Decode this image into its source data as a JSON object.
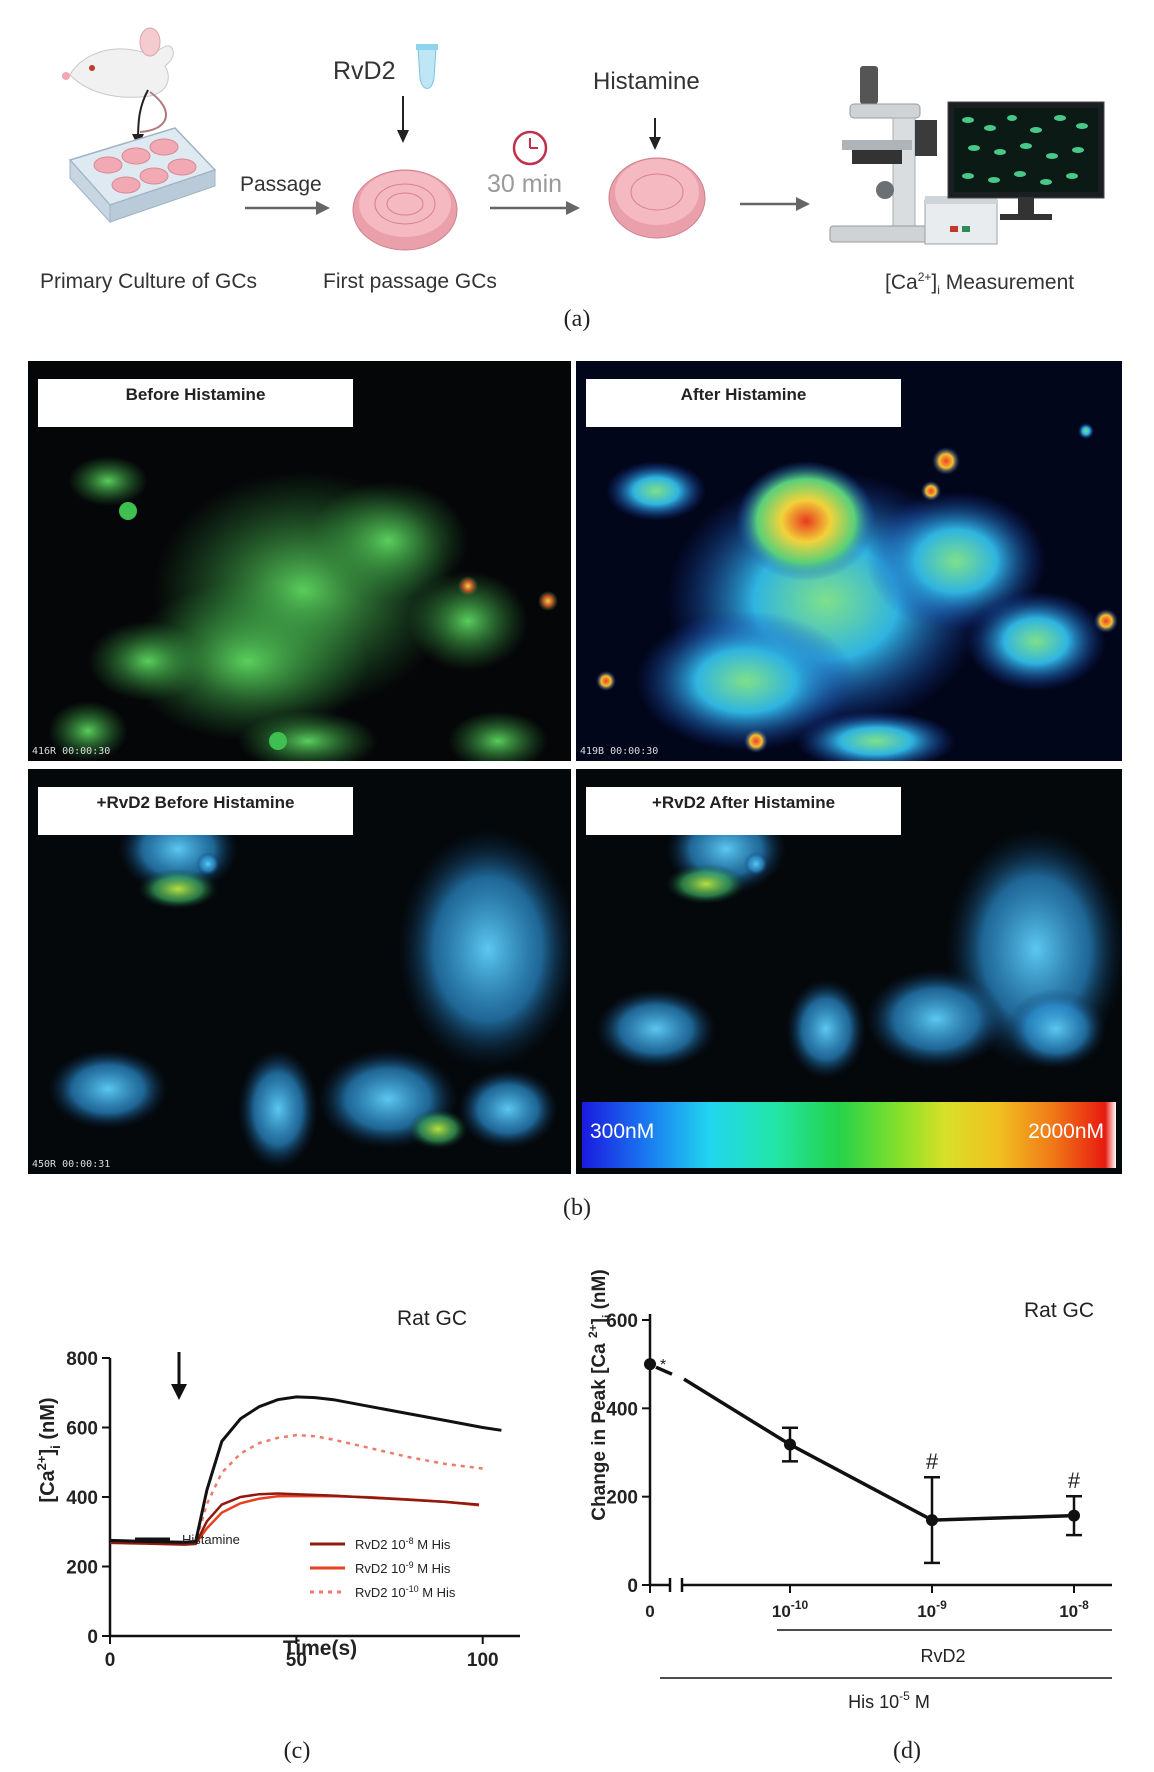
{
  "workflow": {
    "primary_label": "Primary Culture of GCs",
    "passage_label": "Passage",
    "rvd2_label": "RvD2",
    "first_passage_label": "First passage GCs",
    "time_label": "30 min",
    "histamine_label": "Histamine",
    "measurement_label_pre": "[Ca",
    "measurement_label_sup": "2+",
    "measurement_label_post": "]",
    "measurement_label_sub": "i",
    "measurement_label_tail": " Measurement",
    "caption": "(a)"
  },
  "imaging": {
    "panels": [
      {
        "label": "Before Histamine",
        "stamp": "416R 00:00:30"
      },
      {
        "label": "After Histamine",
        "stamp": "419B 00:00:30"
      },
      {
        "label": "+RvD2 Before Histamine",
        "stamp": "450R 00:00:31"
      },
      {
        "label": "+RvD2 After Histamine",
        "stamp": ""
      }
    ],
    "colorbar_min": "300nM",
    "colorbar_max": "2000nM",
    "caption": "(b)"
  },
  "chart_c": {
    "caption": "(c)",
    "title": "Rat GC",
    "xlabel": "Time(s)",
    "ylabel_pre": "[Ca",
    "ylabel_sup": "2+",
    "ylabel_post": "]",
    "ylabel_sub": "i",
    "ylabel_tail": " (nM)",
    "x_ticks": [
      "0",
      "50",
      "100"
    ],
    "y_ticks": [
      "0",
      "200",
      "400",
      "600",
      "800"
    ],
    "legend": [
      {
        "pre": "Histamine",
        "exp": "",
        "post": "",
        "color": "#111111",
        "dash": "none"
      },
      {
        "pre": "RvD2 10",
        "exp": "-8",
        "post": " M His",
        "color": "#8e1a10",
        "dash": "none"
      },
      {
        "pre": "RvD2 10",
        "exp": "-9",
        "post": " M His",
        "color": "#e8401f",
        "dash": "none"
      },
      {
        "pre": "RvD2 10",
        "exp": "-10",
        "post": " M His",
        "color": "#f07a6a",
        "dash": "4,5"
      }
    ]
  },
  "chart_d": {
    "caption": "(d)",
    "title": "Rat GC",
    "ylabel_pre": "Change in Peak [Ca ",
    "ylabel_sup": "2+",
    "ylabel_post": "]",
    "ylabel_sub": "i",
    "ylabel_tail": " (nM)",
    "y_ticks": [
      "0",
      "200",
      "400",
      "600"
    ],
    "x_tick_labels": [
      {
        "base": "0",
        "exp": ""
      },
      {
        "base": "10",
        "exp": "-10"
      },
      {
        "base": "10",
        "exp": "-9"
      },
      {
        "base": "10",
        "exp": "-8"
      }
    ],
    "star": "*",
    "hash": "#",
    "rvd2_bar_label": "RvD2",
    "his_bar_label": "His 10",
    "his_bar_exp": "-5",
    "his_bar_tail": " M"
  },
  "chart_data": [
    {
      "type": "line",
      "title": "Rat GC",
      "xlabel": "Time(s)",
      "ylabel": "[Ca2+]i (nM)",
      "xlim": [
        0,
        110
      ],
      "ylim": [
        0,
        800
      ],
      "annotations": [
        "arrow at t=20 s (histamine addition)"
      ],
      "series": [
        {
          "name": "Histamine",
          "x": [
            0,
            10,
            20,
            23,
            26,
            30,
            35,
            40,
            45,
            50,
            55,
            60,
            70,
            80,
            90,
            100,
            105
          ],
          "y": [
            275,
            272,
            270,
            272,
            420,
            560,
            625,
            660,
            680,
            688,
            686,
            680,
            660,
            640,
            620,
            600,
            592
          ]
        },
        {
          "name": "RvD2 10-8 M His",
          "x": [
            0,
            10,
            20,
            23,
            26,
            30,
            35,
            40,
            45,
            50,
            60,
            70,
            80,
            90,
            99
          ],
          "y": [
            268,
            266,
            263,
            265,
            330,
            378,
            400,
            408,
            410,
            408,
            404,
            398,
            392,
            386,
            378
          ]
        },
        {
          "name": "RvD2 10-9 M His",
          "x": [
            0,
            10,
            20,
            23,
            26,
            30,
            35,
            40,
            45,
            50,
            60,
            70,
            80,
            90,
            99
          ],
          "y": [
            270,
            268,
            265,
            266,
            310,
            355,
            382,
            395,
            402,
            403,
            402,
            399,
            393,
            386,
            376
          ]
        },
        {
          "name": "RvD2 10-10 M His",
          "x": [
            0,
            10,
            20,
            23,
            26,
            30,
            35,
            40,
            45,
            50,
            55,
            60,
            70,
            80,
            90,
            100
          ],
          "y": [
            272,
            270,
            268,
            270,
            380,
            470,
            525,
            555,
            570,
            578,
            575,
            565,
            540,
            515,
            495,
            482
          ]
        }
      ]
    },
    {
      "type": "line",
      "title": "Rat GC",
      "ylabel": "Change in Peak [Ca2+]i (nM)",
      "ylim": [
        0,
        600
      ],
      "categories": [
        "0",
        "10-10",
        "10-9",
        "10-8"
      ],
      "series": [
        {
          "values": [
            500,
            318,
            147,
            157
          ],
          "error": [
            null,
            38,
            97,
            44
          ]
        }
      ],
      "annotations": [
        "* at 0",
        "# at 10-9",
        "# at 10-8",
        "RvD2 bar under 10-10 to 10-8",
        "His 10-5 M bar under all"
      ]
    }
  ]
}
